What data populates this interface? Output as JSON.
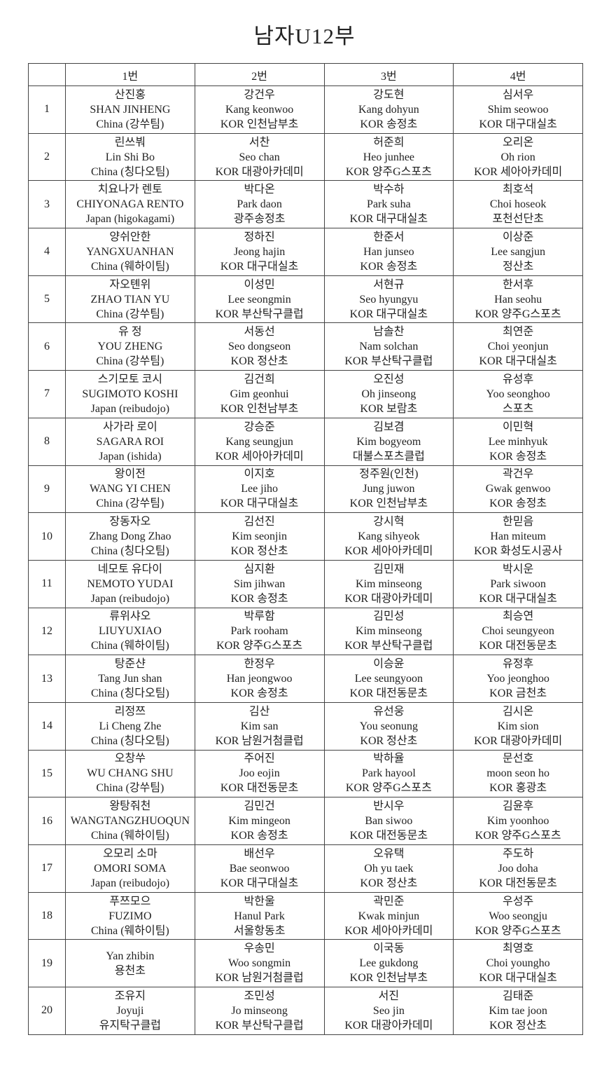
{
  "title": "남자U12부",
  "table": {
    "headers": [
      "",
      "1번",
      "2번",
      "3번",
      "4번"
    ],
    "rows": [
      {
        "num": "1",
        "cells": [
          [
            "산진홍",
            "SHAN JINHENG",
            "China (강쑤팀)"
          ],
          [
            "강건우",
            "Kang keonwoo",
            "KOR 인천남부초"
          ],
          [
            "강도현",
            "Kang dohyun",
            "KOR 송정초"
          ],
          [
            "심서우",
            "Shim seowoo",
            "KOR 대구대실초"
          ]
        ]
      },
      {
        "num": "2",
        "cells": [
          [
            "린쓰붜",
            "Lin Shi Bo",
            "China (칭다오팀)"
          ],
          [
            "서찬",
            "Seo chan",
            "KOR 대광아카데미"
          ],
          [
            "허준희",
            "Heo junhee",
            "KOR 양주G스포츠"
          ],
          [
            "오리온",
            "Oh rion",
            "KOR 세아아카데미"
          ]
        ]
      },
      {
        "num": "3",
        "cells": [
          [
            "치요나가 렌토",
            "CHIYONAGA RENTO",
            "Japan (higokagami)"
          ],
          [
            "박다온",
            "Park daon",
            "광주송정초"
          ],
          [
            "박수하",
            "Park suha",
            "KOR 대구대실초"
          ],
          [
            "최호석",
            "Choi hoseok",
            "포천선단초"
          ]
        ]
      },
      {
        "num": "4",
        "cells": [
          [
            "양쉬안한",
            "YANGXUANHAN",
            "China (웨하이팀)"
          ],
          [
            "정하진",
            "Jeong hajin",
            "KOR 대구대실초"
          ],
          [
            "한준서",
            "Han junseo",
            "KOR 송정초"
          ],
          [
            "이상준",
            "Lee sangjun",
            "정산초"
          ]
        ]
      },
      {
        "num": "5",
        "cells": [
          [
            "자오톈위",
            "ZHAO TIAN YU",
            "China (강쑤팀)"
          ],
          [
            "이성민",
            "Lee seongmin",
            "KOR 부산탁구클럽"
          ],
          [
            "서현규",
            "Seo hyungyu",
            "KOR 대구대실초"
          ],
          [
            "한서후",
            "Han seohu",
            "KOR 양주G스포츠"
          ]
        ]
      },
      {
        "num": "6",
        "cells": [
          [
            "유 정",
            "YOU ZHENG",
            "China (강쑤팀)"
          ],
          [
            "서동선",
            "Seo dongseon",
            "KOR 정산초"
          ],
          [
            "남솔찬",
            "Nam solchan",
            "KOR 부산탁구클럽"
          ],
          [
            "최연준",
            "Choi yeonjun",
            "KOR 대구대실초"
          ]
        ]
      },
      {
        "num": "7",
        "cells": [
          [
            "스기모토 코시",
            "SUGIMOTO KOSHI",
            "Japan (reibudojo)"
          ],
          [
            "김건희",
            "Gim geonhui",
            "KOR 인천남부초"
          ],
          [
            "오진성",
            "Oh jinseong",
            "KOR 보람초"
          ],
          [
            "유성후",
            "Yoo seonghoo",
            "스포츠"
          ]
        ]
      },
      {
        "num": "8",
        "cells": [
          [
            "사가라 로이",
            "SAGARA ROI",
            "Japan (ishida)"
          ],
          [
            "강승준",
            "Kang seungjun",
            "KOR 세아아카데미"
          ],
          [
            "김보겸",
            "Kim bogyeom",
            "대불스포츠클럽"
          ],
          [
            "이민혁",
            "Lee minhyuk",
            "KOR 송정초"
          ]
        ]
      },
      {
        "num": "9",
        "cells": [
          [
            "왕이전",
            "WANG YI CHEN",
            "China (강쑤팀)"
          ],
          [
            "이지호",
            "Lee jiho",
            "KOR 대구대실초"
          ],
          [
            "정주원(인천)",
            "Jung juwon",
            "KOR 인천남부초"
          ],
          [
            "곽건우",
            "Gwak genwoo",
            "KOR 송정초"
          ]
        ]
      },
      {
        "num": "10",
        "cells": [
          [
            "장동자오",
            "Zhang Dong Zhao",
            "China (칭다오팀)"
          ],
          [
            "김선진",
            "Kim seonjin",
            "KOR 정산초"
          ],
          [
            "강시혁",
            "Kang sihyeok",
            "KOR 세아아카데미"
          ],
          [
            "한믿음",
            "Han miteum",
            "KOR 화성도시공사"
          ]
        ]
      },
      {
        "num": "11",
        "cells": [
          [
            "네모토 유다이",
            "NEMOTO YUDAI",
            "Japan (reibudojo)"
          ],
          [
            "심지환",
            "Sim jihwan",
            "KOR 송정초"
          ],
          [
            "김민재",
            "Kim minseong",
            "KOR 대광아카데미"
          ],
          [
            "박시운",
            "Park siwoon",
            "KOR 대구대실초"
          ]
        ]
      },
      {
        "num": "12",
        "cells": [
          [
            "류위샤오",
            "LIUYUXIAO",
            "China (웨하이팀)"
          ],
          [
            "박루함",
            "Park rooham",
            "KOR 양주G스포츠"
          ],
          [
            "김민성",
            "Kim minseong",
            "KOR 부산탁구클럽"
          ],
          [
            "최승연",
            "Choi seungyeon",
            "KOR 대전동문초"
          ]
        ]
      },
      {
        "num": "13",
        "cells": [
          [
            "탕준샨",
            "Tang Jun shan",
            "China (칭다오팀)"
          ],
          [
            "한정우",
            "Han jeongwoo",
            "KOR 송정초"
          ],
          [
            "이승윤",
            "Lee seungyoon",
            "KOR 대전동문초"
          ],
          [
            "유정후",
            "Yoo jeonghoo",
            "KOR 금천초"
          ]
        ]
      },
      {
        "num": "14",
        "cells": [
          [
            "리정쯔",
            "Li Cheng Zhe",
            "China (칭다오팀)"
          ],
          [
            "김산",
            "Kim san",
            "KOR 남원거첨클럽"
          ],
          [
            "유선웅",
            "You seonung",
            "KOR 정산초"
          ],
          [
            "김시온",
            "Kim sion",
            "KOR 대광아카데미"
          ]
        ]
      },
      {
        "num": "15",
        "cells": [
          [
            "오창쑤",
            "WU CHANG SHU",
            "China (강쑤팀)"
          ],
          [
            "주어진",
            "Joo eojin",
            "KOR 대전동문초"
          ],
          [
            "박하율",
            "Park hayool",
            "KOR 양주G스포츠"
          ],
          [
            "문선호",
            "moon seon ho",
            "KOR 홍광초"
          ]
        ]
      },
      {
        "num": "16",
        "cells": [
          [
            "왕탕줘천",
            "WANGTANGZHUOQUN",
            "China (웨하이팀)"
          ],
          [
            "김민건",
            "Kim mingeon",
            "KOR 송정초"
          ],
          [
            "반시우",
            "Ban siwoo",
            "KOR 대전동문초"
          ],
          [
            "김윤후",
            "Kim yoonhoo",
            "KOR 양주G스포츠"
          ]
        ]
      },
      {
        "num": "17",
        "cells": [
          [
            "오모리 소마",
            "OMORI SOMA",
            "Japan (reibudojo)"
          ],
          [
            "배선우",
            "Bae seonwoo",
            "KOR 대구대실초"
          ],
          [
            "오유택",
            "Oh yu taek",
            "KOR 정산초"
          ],
          [
            "주도하",
            "Joo doha",
            "KOR 대전동문초"
          ]
        ]
      },
      {
        "num": "18",
        "cells": [
          [
            "푸쯔모으",
            "FUZIMO",
            "China (웨하이팀)"
          ],
          [
            "박한울",
            "Hanul Park",
            "서울항동초"
          ],
          [
            "곽민준",
            "Kwak minjun",
            "KOR 세아아카데미"
          ],
          [
            "우성주",
            "Woo seongju",
            "KOR 양주G스포츠"
          ]
        ]
      },
      {
        "num": "19",
        "cells": [
          [
            "Yan zhibin",
            "용천초"
          ],
          [
            "우송민",
            "Woo songmin",
            "KOR 남원거첨클럽"
          ],
          [
            "이국동",
            "Lee gukdong",
            "KOR 인천남부초"
          ],
          [
            "최영호",
            "Choi youngho",
            "KOR 대구대실초"
          ]
        ]
      },
      {
        "num": "20",
        "cells": [
          [
            "조유지",
            "Joyuji",
            "유지탁구클럽"
          ],
          [
            "조민성",
            "Jo minseong",
            "KOR 부산탁구클럽"
          ],
          [
            "서진",
            "Seo jin",
            "KOR 대광아카데미"
          ],
          [
            "김태준",
            "Kim tae joon",
            "KOR 정산초"
          ]
        ]
      }
    ]
  }
}
